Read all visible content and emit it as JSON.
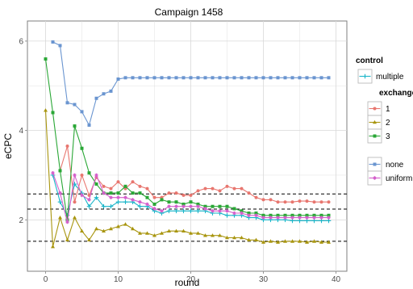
{
  "chart_data": {
    "type": "line",
    "title": "Campaign 1458",
    "xlabel": "round",
    "ylabel": "eCPC",
    "xlim": [
      -2.5,
      41.5
    ],
    "ylim": [
      0.85,
      6.45
    ],
    "x_ticks": [
      0,
      10,
      20,
      30,
      40
    ],
    "y_ticks": [
      2,
      4,
      6
    ],
    "grid": true,
    "reference_lines": [
      1.52,
      2.24,
      2.58
    ],
    "legend": {
      "position": "right",
      "groups": [
        {
          "title": "control",
          "entries": [
            "multiple"
          ]
        },
        {
          "title": "exchange",
          "entries": [
            "1",
            "2",
            "3"
          ]
        },
        {
          "title": "",
          "entries": [
            "none",
            "uniform"
          ]
        }
      ]
    },
    "series": [
      {
        "name": "multiple",
        "color": "#1ab5c9",
        "marker": "plus",
        "x": [
          1,
          2,
          3,
          4,
          5,
          6,
          7,
          8,
          9,
          10,
          11,
          12,
          13,
          14,
          15,
          16,
          17,
          18,
          19,
          20,
          21,
          22,
          23,
          24,
          25,
          26,
          27,
          28,
          29,
          30,
          31,
          32,
          33,
          34,
          35,
          36,
          37,
          38,
          39
        ],
        "y": [
          3.0,
          2.4,
          2.1,
          2.8,
          2.6,
          2.3,
          2.5,
          2.3,
          2.3,
          2.4,
          2.4,
          2.4,
          2.3,
          2.3,
          2.2,
          2.15,
          2.2,
          2.2,
          2.2,
          2.2,
          2.2,
          2.2,
          2.15,
          2.15,
          2.1,
          2.1,
          2.1,
          2.05,
          2.05,
          2.0,
          2.0,
          2.0,
          2.0,
          1.98,
          1.98,
          1.98,
          1.98,
          1.98,
          1.98
        ]
      },
      {
        "name": "1",
        "color": "#e8766f",
        "marker": "circle",
        "x": [
          2,
          3,
          4,
          5,
          6,
          7,
          8,
          9,
          10,
          11,
          12,
          13,
          14,
          15,
          16,
          17,
          18,
          19,
          20,
          21,
          22,
          23,
          24,
          25,
          26,
          27,
          28,
          29,
          30,
          31,
          32,
          33,
          34,
          35,
          36,
          37,
          38,
          39
        ],
        "y": [
          3.1,
          3.65,
          2.4,
          3.0,
          2.55,
          2.95,
          2.75,
          2.7,
          2.85,
          2.7,
          2.85,
          2.75,
          2.7,
          2.5,
          2.5,
          2.6,
          2.6,
          2.55,
          2.55,
          2.65,
          2.7,
          2.7,
          2.65,
          2.75,
          2.7,
          2.7,
          2.6,
          2.5,
          2.45,
          2.45,
          2.4,
          2.4,
          2.4,
          2.42,
          2.42,
          2.4,
          2.4,
          2.4
        ]
      },
      {
        "name": "2",
        "color": "#a8950e",
        "marker": "triangle",
        "x": [
          0,
          1,
          2,
          3,
          4,
          5,
          6,
          7,
          8,
          9,
          10,
          11,
          12,
          13,
          14,
          15,
          16,
          17,
          18,
          19,
          20,
          21,
          22,
          23,
          24,
          25,
          26,
          27,
          28,
          29,
          30,
          31,
          32,
          33,
          34,
          35,
          36,
          37,
          38,
          39
        ],
        "y": [
          4.45,
          1.4,
          2.05,
          1.55,
          2.05,
          1.75,
          1.55,
          1.8,
          1.75,
          1.8,
          1.85,
          1.9,
          1.8,
          1.7,
          1.7,
          1.65,
          1.7,
          1.75,
          1.75,
          1.75,
          1.7,
          1.7,
          1.65,
          1.65,
          1.65,
          1.6,
          1.6,
          1.6,
          1.55,
          1.55,
          1.5,
          1.52,
          1.5,
          1.52,
          1.52,
          1.52,
          1.5,
          1.52,
          1.5,
          1.5
        ]
      },
      {
        "name": "3",
        "color": "#2aa736",
        "marker": "square",
        "x": [
          0,
          1,
          2,
          3,
          4,
          5,
          6,
          7,
          8,
          9,
          10,
          11,
          12,
          13,
          14,
          15,
          16,
          17,
          18,
          19,
          20,
          21,
          22,
          23,
          24,
          25,
          26,
          27,
          28,
          29,
          30,
          31,
          32,
          33,
          34,
          35,
          36,
          37,
          38,
          39
        ],
        "y": [
          5.6,
          4.4,
          3.1,
          2.0,
          4.1,
          3.6,
          3.05,
          2.8,
          2.6,
          2.6,
          2.6,
          2.75,
          2.6,
          2.6,
          2.5,
          2.35,
          2.45,
          2.4,
          2.4,
          2.35,
          2.4,
          2.35,
          2.3,
          2.3,
          2.3,
          2.3,
          2.25,
          2.2,
          2.15,
          2.15,
          2.1,
          2.1,
          2.1,
          2.1,
          2.1,
          2.1,
          2.1,
          2.1,
          2.1,
          2.1
        ]
      },
      {
        "name": "none",
        "color": "#6a95d0",
        "marker": "square",
        "x": [
          1,
          2,
          3,
          4,
          5,
          6,
          7,
          8,
          9,
          10,
          11,
          12,
          13,
          14,
          15,
          16,
          17,
          18,
          19,
          20,
          21,
          22,
          23,
          24,
          25,
          26,
          27,
          28,
          29,
          30,
          31,
          32,
          33,
          34,
          35,
          36,
          37,
          38,
          39
        ],
        "y": [
          5.98,
          5.9,
          4.62,
          4.58,
          4.42,
          4.12,
          4.72,
          4.82,
          4.88,
          5.15,
          5.18,
          5.18,
          5.18,
          5.18,
          5.18,
          5.18,
          5.18,
          5.18,
          5.18,
          5.18,
          5.18,
          5.18,
          5.18,
          5.18,
          5.18,
          5.18,
          5.18,
          5.18,
          5.18,
          5.18,
          5.18,
          5.18,
          5.18,
          5.18,
          5.18,
          5.18,
          5.18,
          5.18,
          5.18
        ]
      },
      {
        "name": "uniform",
        "color": "#d45fcb",
        "marker": "star",
        "x": [
          1,
          2,
          3,
          4,
          5,
          6,
          7,
          8,
          9,
          10,
          11,
          12,
          13,
          14,
          15,
          16,
          17,
          18,
          19,
          20,
          21,
          22,
          23,
          24,
          25,
          26,
          27,
          28,
          29,
          30,
          31,
          32,
          33,
          34,
          35,
          36,
          37,
          38,
          39
        ],
        "y": [
          3.05,
          2.6,
          1.95,
          3.0,
          2.55,
          2.45,
          3.0,
          2.6,
          2.5,
          2.5,
          2.5,
          2.45,
          2.4,
          2.35,
          2.25,
          2.2,
          2.3,
          2.3,
          2.3,
          2.3,
          2.3,
          2.25,
          2.2,
          2.2,
          2.2,
          2.15,
          2.15,
          2.1,
          2.1,
          2.05,
          2.05,
          2.05,
          2.05,
          2.05,
          2.05,
          2.05,
          2.05,
          2.05,
          2.05
        ]
      }
    ]
  }
}
